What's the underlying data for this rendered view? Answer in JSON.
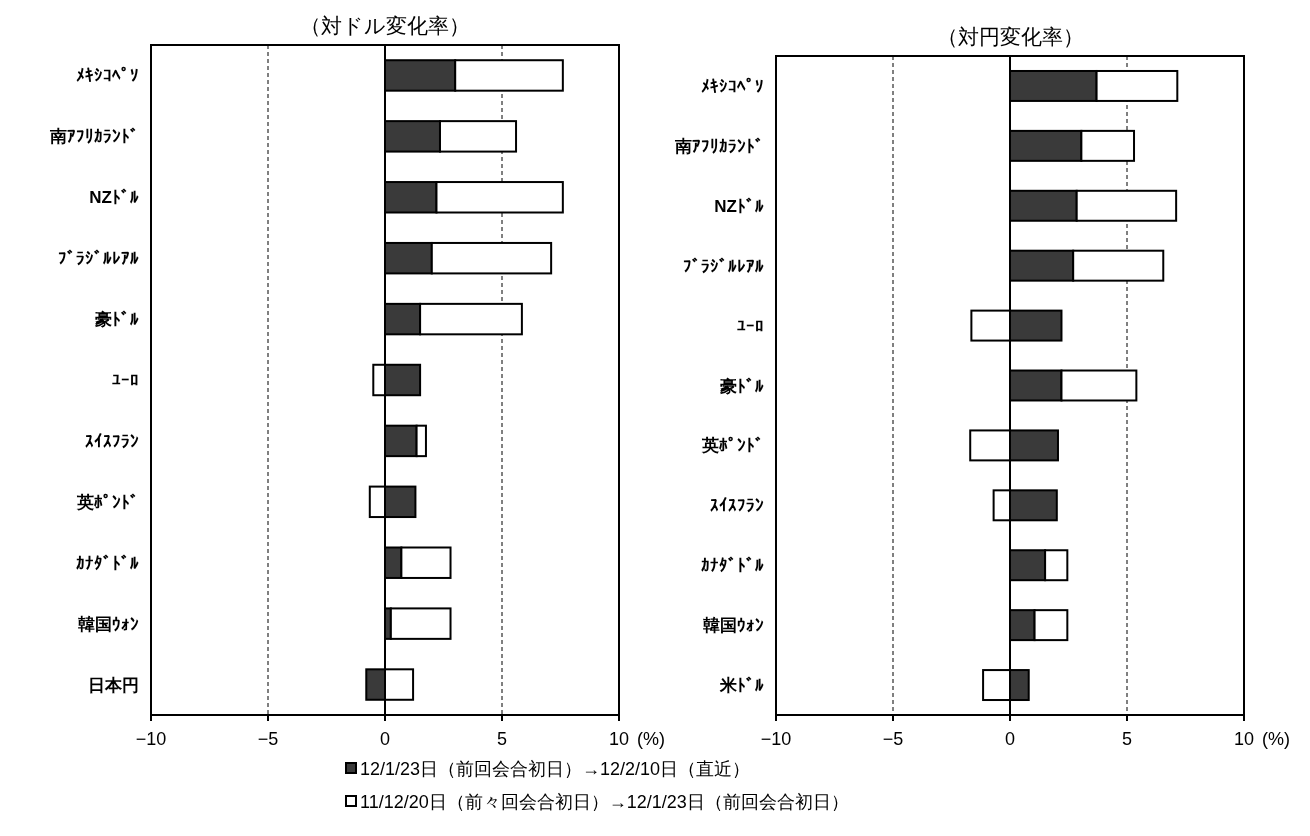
{
  "chart_data": [
    {
      "type": "bar",
      "orientation": "horizontal",
      "title": "（対ドル変化率）",
      "xlabel": "(%)",
      "categories": [
        "ﾒｷｼｺﾍﾟｿ",
        "南ｱﾌﾘｶﾗﾝﾄﾞ",
        "NZﾄﾞﾙ",
        "ﾌﾞﾗｼﾞﾙﾚｱﾙ",
        "豪ﾄﾞﾙ",
        "ﾕｰﾛ",
        "ｽｲｽﾌﾗﾝ",
        "英ﾎﾟﾝﾄﾞ",
        "ｶﾅﾀﾞﾄﾞﾙ",
        "韓国ｳｫﾝ",
        "日本円"
      ],
      "series": [
        {
          "name": "12/1/23日（前回会合初日）→12/2/10日（直近）",
          "color": "#3a3a3a",
          "values": [
            3.0,
            2.35,
            2.2,
            2.0,
            1.5,
            1.5,
            1.35,
            1.3,
            0.7,
            0.25,
            -0.8
          ]
        },
        {
          "name": "11/12/20日（前々回会合初日）→12/1/23日（前回会合初日）",
          "color": "#ffffff",
          "values": [
            4.6,
            3.25,
            5.4,
            5.1,
            4.35,
            -0.5,
            0.4,
            -0.65,
            2.1,
            2.55,
            1.2
          ]
        }
      ],
      "xlim": [
        -10,
        10
      ],
      "xticks": [
        -10,
        -5,
        0,
        5,
        10
      ],
      "grid": "x",
      "legend": "bottom",
      "stacked": true
    },
    {
      "type": "bar",
      "orientation": "horizontal",
      "title": "（対円変化率）",
      "xlabel": "(%)",
      "categories": [
        "ﾒｷｼｺﾍﾟｿ",
        "南ｱﾌﾘｶﾗﾝﾄﾞ",
        "NZﾄﾞﾙ",
        "ﾌﾞﾗｼﾞﾙﾚｱﾙ",
        "ﾕｰﾛ",
        "豪ﾄﾞﾙ",
        "英ﾎﾟﾝﾄﾞ",
        "ｽｲｽﾌﾗﾝ",
        "ｶﾅﾀﾞﾄﾞﾙ",
        "韓国ｳｫﾝ",
        "米ﾄﾞﾙ"
      ],
      "series": [
        {
          "color": "#3a3a3a",
          "values": [
            3.7,
            3.05,
            2.85,
            2.7,
            2.2,
            2.2,
            2.05,
            2.0,
            1.5,
            1.05,
            0.8
          ]
        },
        {
          "color": "#ffffff",
          "values": [
            3.45,
            2.25,
            4.25,
            3.85,
            -1.65,
            3.2,
            -1.7,
            -0.7,
            0.95,
            1.4,
            -1.15
          ]
        }
      ],
      "xlim": [
        -10,
        10
      ],
      "xticks": [
        -10,
        -5,
        0,
        5,
        10
      ],
      "grid": "x",
      "stacked": true
    }
  ]
}
